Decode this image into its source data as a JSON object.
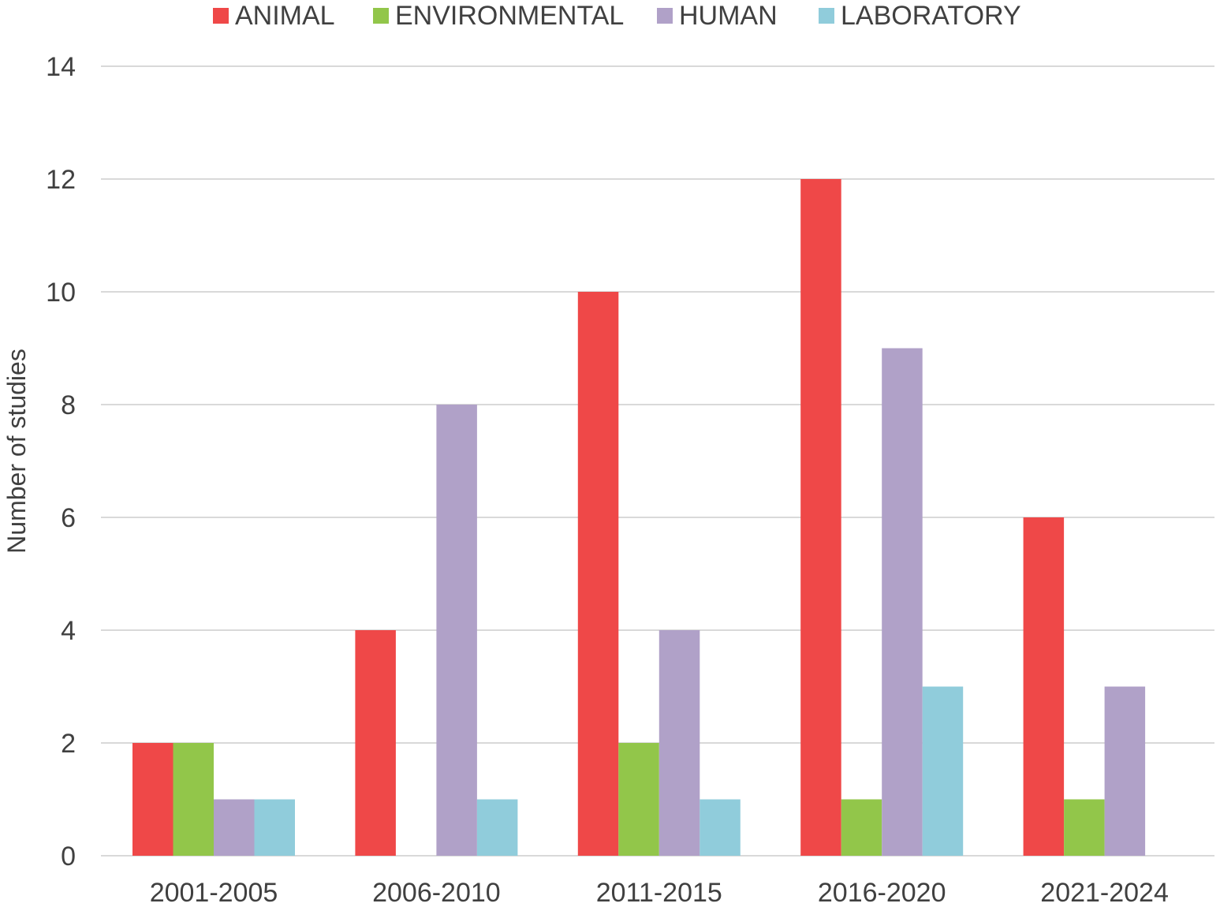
{
  "chart_data": {
    "type": "bar",
    "title": "",
    "xlabel": "",
    "ylabel": "Number of studies",
    "ylim": [
      0,
      14
    ],
    "yticks": [
      "0",
      "2",
      "4",
      "6",
      "8",
      "10",
      "12",
      "14"
    ],
    "ytick_values": [
      0,
      2,
      4,
      6,
      8,
      10,
      12,
      14
    ],
    "grid": true,
    "legend_position": "top",
    "categories": [
      "2001-2005",
      "2006-2010",
      "2011-2015",
      "2016-2020",
      "2021-2024"
    ],
    "series": [
      {
        "name": "ANIMAL",
        "color": "#ef4848",
        "values": [
          2,
          4,
          10,
          12,
          6
        ]
      },
      {
        "name": "ENVIRONMENTAL",
        "color": "#92c64a",
        "values": [
          2,
          0,
          2,
          1,
          1
        ]
      },
      {
        "name": "HUMAN",
        "color": "#b0a1c8",
        "values": [
          1,
          8,
          4,
          9,
          3
        ]
      },
      {
        "name": "LABORATORY",
        "color": "#90ccdb",
        "values": [
          1,
          1,
          1,
          3,
          0
        ]
      }
    ]
  }
}
